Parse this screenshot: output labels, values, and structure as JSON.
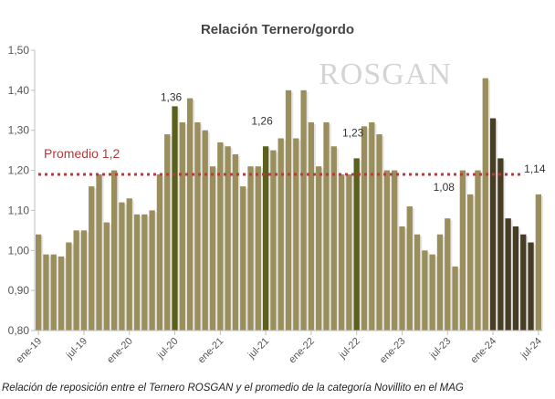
{
  "chart_data": {
    "type": "bar",
    "title": "Relación Ternero/gordo",
    "watermark": "ROSGAN",
    "caption": "Relación de reposición entre el Ternero ROSGAN y el promedio de la categoría Novillito en el MAG",
    "ylim": [
      0.8,
      1.5
    ],
    "yticks": [
      "0,80",
      "0,90",
      "1,00",
      "1,10",
      "1,20",
      "1,30",
      "1,40",
      "1,50"
    ],
    "xtick_labels": [
      "ene-19",
      "jul-19",
      "ene-20",
      "jul-20",
      "ene-21",
      "jul-21",
      "ene-22",
      "jul-22",
      "ene-23",
      "jul-23",
      "ene-24",
      "jul-24"
    ],
    "average": {
      "label": "Promedio 1,2",
      "value": 1.19
    },
    "values": [
      1.04,
      0.99,
      0.99,
      0.985,
      1.02,
      1.05,
      1.05,
      1.16,
      1.19,
      1.07,
      1.2,
      1.12,
      1.13,
      1.09,
      1.09,
      1.1,
      1.19,
      1.29,
      1.36,
      1.32,
      1.38,
      1.32,
      1.3,
      1.21,
      1.27,
      1.26,
      1.24,
      1.16,
      1.21,
      1.21,
      1.26,
      1.25,
      1.28,
      1.4,
      1.28,
      1.4,
      1.32,
      1.21,
      1.32,
      1.26,
      1.19,
      1.19,
      1.23,
      1.31,
      1.32,
      1.29,
      1.2,
      1.2,
      1.06,
      1.11,
      1.04,
      1.0,
      0.99,
      1.04,
      1.08,
      0.96,
      1.2,
      1.14,
      1.2,
      1.43,
      1.33,
      1.23,
      1.08,
      1.06,
      1.04,
      1.02,
      1.14
    ],
    "highlight_green": [
      18,
      30,
      42
    ],
    "highlight_dark": [
      60,
      61,
      62,
      63,
      64,
      65
    ],
    "data_labels": [
      {
        "index": 18,
        "text": "1,36"
      },
      {
        "index": 30,
        "text": "1,26"
      },
      {
        "index": 42,
        "text": "1,23"
      },
      {
        "index": 54,
        "text": "1,08"
      },
      {
        "index": 66,
        "text": "1,14"
      }
    ],
    "colors": {
      "bar": "#9a8f5c",
      "green": "#5b611c",
      "dark": "#463d24",
      "avg": "#b8393a",
      "grid": "#d9d9d9"
    }
  }
}
